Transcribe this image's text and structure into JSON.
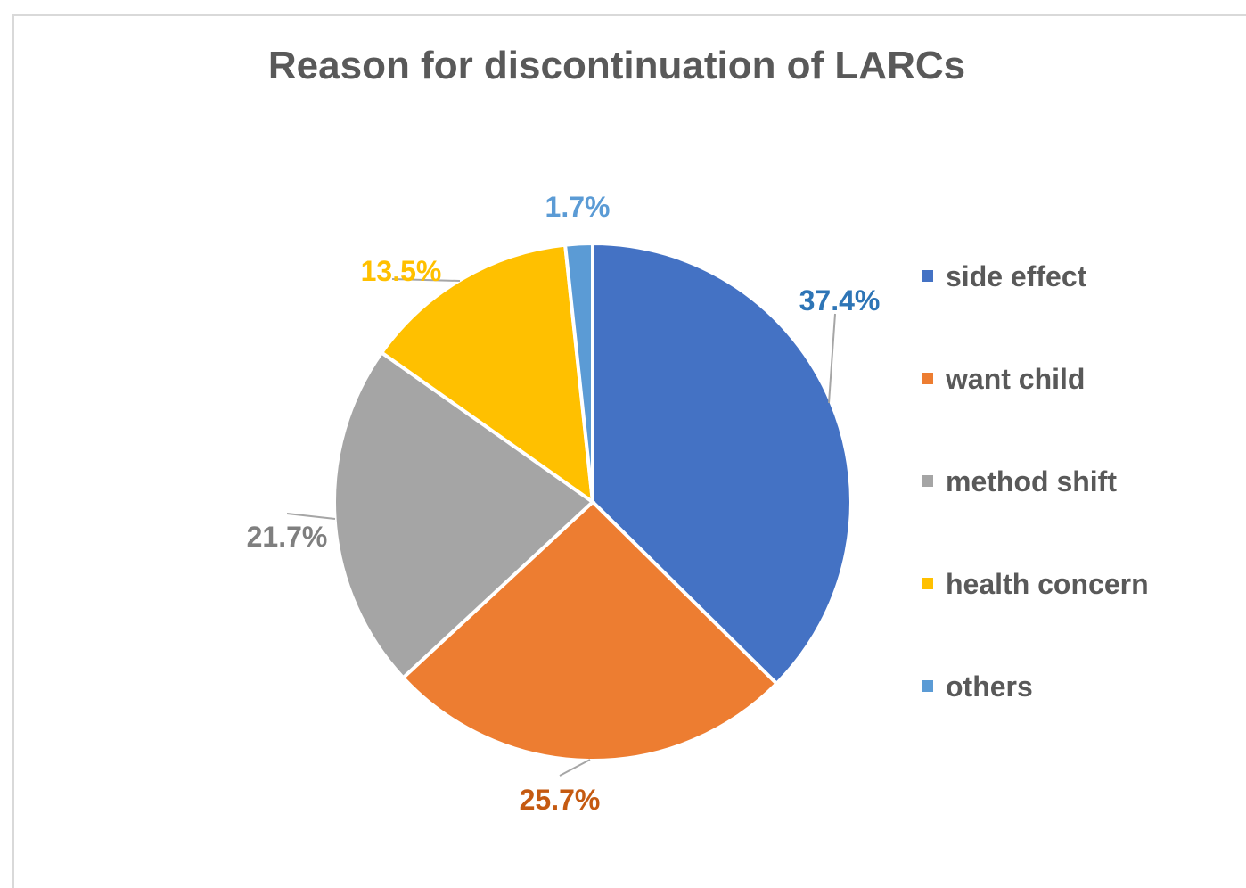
{
  "chart_data": {
    "type": "pie",
    "title": "Reason for discontinuation of LARCs",
    "categories": [
      "side effect",
      "want child",
      "method shift",
      "health concern",
      "others"
    ],
    "values": [
      37.4,
      25.7,
      21.7,
      13.5,
      1.7
    ],
    "labels": [
      "37.4%",
      "25.7%",
      "21.7%",
      "13.5%",
      "1.7%"
    ],
    "colors": [
      "#4472C4",
      "#ED7D31",
      "#A5A5A5",
      "#FFC000",
      "#5B9BD5"
    ],
    "label_colors": [
      "#2E75B6",
      "#C55A11",
      "#7F7F7F",
      "#FFC000",
      "#5B9BD5"
    ],
    "start_angle_deg": 0,
    "direction": "clockwise",
    "legend_position": "right"
  }
}
